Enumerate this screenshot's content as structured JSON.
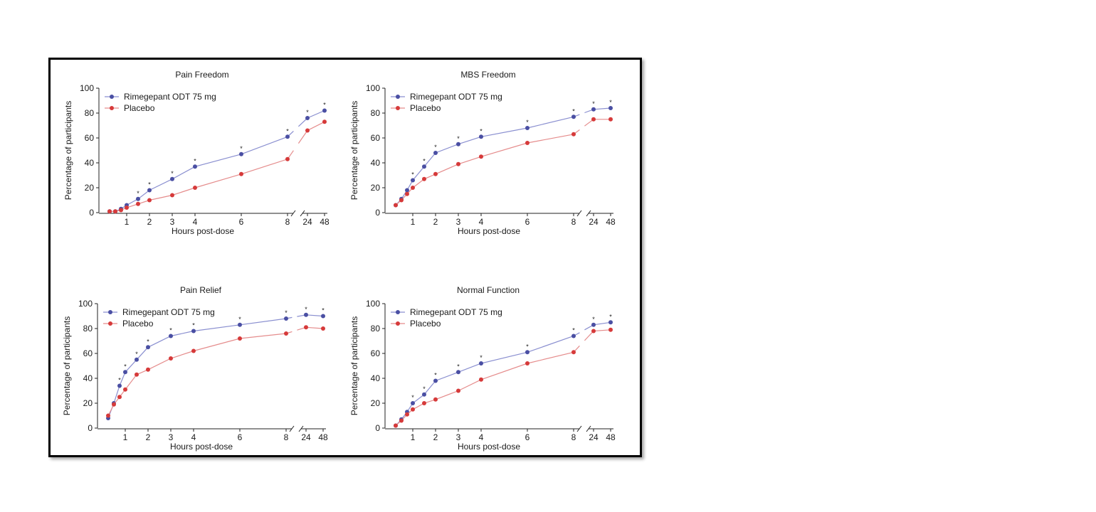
{
  "chart_data": [
    {
      "type": "line",
      "title": "Pain Freedom",
      "xlabel": "Hours post-dose",
      "ylabel": "Percentage of participants",
      "ylim": [
        0,
        100
      ],
      "yticks": [
        "0",
        "20",
        "40",
        "60",
        "80",
        "100"
      ],
      "xticks": [
        "1",
        "2",
        "3",
        "4",
        "6",
        "8",
        "24",
        "48"
      ],
      "legend": "top-left",
      "grid": false,
      "x": [
        0.25,
        0.5,
        0.75,
        1,
        1.5,
        2,
        3,
        4,
        6,
        8,
        24,
        48
      ],
      "series": [
        {
          "name": "Rimegepant ODT 75 mg",
          "color": "#4a4fa3",
          "line_color": "#8a8fd0",
          "values": [
            1,
            1,
            3,
            6,
            11,
            18,
            27,
            37,
            47,
            61,
            76,
            82
          ],
          "significant": [
            false,
            false,
            false,
            false,
            true,
            true,
            true,
            true,
            true,
            true,
            true,
            true
          ]
        },
        {
          "name": "Placebo",
          "color": "#d63a3a",
          "line_color": "#e58c8c",
          "values": [
            1,
            1,
            2,
            4,
            7,
            10,
            14,
            20,
            31,
            43,
            66,
            73
          ]
        }
      ]
    },
    {
      "type": "line",
      "title": "MBS Freedom",
      "xlabel": "Hours post-dose",
      "ylabel": "Percentage of participants",
      "ylim": [
        0,
        100
      ],
      "yticks": [
        "0",
        "20",
        "40",
        "60",
        "80",
        "100"
      ],
      "xticks": [
        "1",
        "2",
        "3",
        "4",
        "6",
        "8",
        "24",
        "48"
      ],
      "legend": "top-left",
      "grid": false,
      "x": [
        0.25,
        0.5,
        0.75,
        1,
        1.5,
        2,
        3,
        4,
        6,
        8,
        24,
        48
      ],
      "series": [
        {
          "name": "Rimegepant ODT 75 mg",
          "color": "#4a4fa3",
          "line_color": "#8a8fd0",
          "values": [
            6,
            11,
            18,
            26,
            37,
            48,
            55,
            61,
            68,
            77,
            83,
            84
          ],
          "significant": [
            false,
            false,
            false,
            true,
            true,
            true,
            true,
            true,
            true,
            true,
            true,
            true
          ]
        },
        {
          "name": "Placebo",
          "color": "#d63a3a",
          "line_color": "#e58c8c",
          "values": [
            6,
            10,
            15,
            20,
            27,
            31,
            39,
            45,
            56,
            63,
            75,
            75
          ]
        }
      ]
    },
    {
      "type": "line",
      "title": "Pain Relief",
      "xlabel": "Hours post-dose",
      "ylabel": "Percentage of participants",
      "ylim": [
        0,
        100
      ],
      "yticks": [
        "0",
        "20",
        "40",
        "60",
        "80",
        "100"
      ],
      "xticks": [
        "1",
        "2",
        "3",
        "4",
        "6",
        "8",
        "24",
        "48"
      ],
      "legend": "top-left",
      "grid": false,
      "x": [
        0.25,
        0.5,
        0.75,
        1,
        1.5,
        2,
        3,
        4,
        6,
        8,
        24,
        48
      ],
      "series": [
        {
          "name": "Rimegepant ODT 75 mg",
          "color": "#4a4fa3",
          "line_color": "#8a8fd0",
          "values": [
            8,
            20,
            34,
            45,
            55,
            65,
            74,
            78,
            83,
            88,
            91,
            90
          ],
          "significant": [
            false,
            false,
            true,
            true,
            true,
            true,
            true,
            true,
            true,
            true,
            true,
            true
          ]
        },
        {
          "name": "Placebo",
          "color": "#d63a3a",
          "line_color": "#e58c8c",
          "values": [
            10,
            19,
            25,
            31,
            43,
            47,
            56,
            62,
            72,
            76,
            81,
            80
          ]
        }
      ]
    },
    {
      "type": "line",
      "title": "Normal Function",
      "xlabel": "Hours post-dose",
      "ylabel": "Percentage of participants",
      "ylim": [
        0,
        100
      ],
      "yticks": [
        "0",
        "20",
        "40",
        "60",
        "80",
        "100"
      ],
      "xticks": [
        "1",
        "2",
        "3",
        "4",
        "6",
        "8",
        "24",
        "48"
      ],
      "legend": "top-left",
      "grid": false,
      "x": [
        0.25,
        0.5,
        0.75,
        1,
        1.5,
        2,
        3,
        4,
        6,
        8,
        24,
        48
      ],
      "series": [
        {
          "name": "Rimegepant ODT 75 mg",
          "color": "#4a4fa3",
          "line_color": "#8a8fd0",
          "values": [
            2,
            7,
            13,
            20,
            27,
            38,
            45,
            52,
            61,
            74,
            83,
            85
          ],
          "significant": [
            false,
            false,
            false,
            true,
            true,
            true,
            true,
            true,
            true,
            true,
            true,
            true
          ]
        },
        {
          "name": "Placebo",
          "color": "#d63a3a",
          "line_color": "#e58c8c",
          "values": [
            2,
            6,
            11,
            15,
            20,
            23,
            30,
            39,
            52,
            61,
            78,
            79
          ]
        }
      ]
    }
  ],
  "significance_marker": "*"
}
